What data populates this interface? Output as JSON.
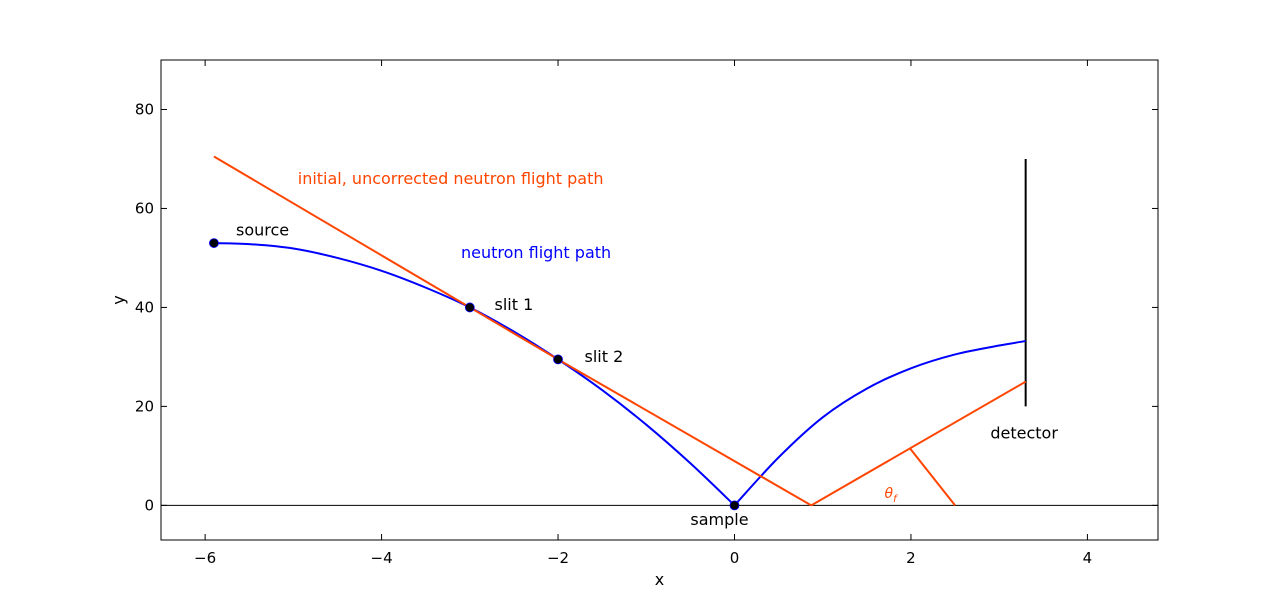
{
  "chart_data": {
    "type": "line",
    "xlabel": "x",
    "ylabel": "y",
    "xlim": [
      -6.5,
      4.8
    ],
    "ylim": [
      -7,
      90
    ],
    "xticks": [
      -6,
      -4,
      -2,
      0,
      2,
      4
    ],
    "yticks": [
      0,
      20,
      40,
      60,
      80
    ],
    "xtick_labels": [
      "−6",
      "−4",
      "−2",
      "0",
      "2",
      "4"
    ],
    "ytick_labels": [
      "0",
      "20",
      "40",
      "60",
      "80"
    ],
    "grid": false,
    "series": [
      {
        "color": "#0000ff",
        "x": [
          -5.9,
          -5.5,
          -5.0,
          -4.5,
          -4.0,
          -3.5,
          -3.0,
          -2.5,
          -2.0,
          -1.5,
          -1.0,
          -0.5,
          0.0
        ],
        "y": [
          53,
          52.8,
          51.9,
          50.0,
          47.4,
          44.0,
          40.0,
          35.1,
          29.5,
          23.3,
          16.3,
          8.5,
          0.0
        ]
      },
      {
        "color": "#0000ff",
        "x": [
          0.0,
          0.5,
          1.0,
          1.5,
          2.0,
          2.5,
          3.0,
          3.3
        ],
        "y": [
          0.0,
          9.7,
          17.8,
          23.6,
          27.7,
          30.5,
          32.3,
          33.2
        ]
      },
      {
        "color": "#ff4500",
        "x": [
          -5.9,
          -3.0,
          -2.0,
          0.87
        ],
        "y": [
          70.5,
          40.0,
          29.5,
          0.0
        ]
      },
      {
        "color": "#ff4500",
        "x": [
          0.87,
          3.3
        ],
        "y": [
          0.0,
          25.0
        ]
      },
      {
        "color": "#ff4500",
        "x": [
          1.99,
          2.5
        ],
        "y": [
          11.5,
          0.0
        ]
      }
    ],
    "baseline": {
      "y": 0,
      "color": "#000000"
    },
    "detector_bar": {
      "x": 3.3,
      "y": [
        20,
        70
      ],
      "color": "#000000"
    },
    "points": [
      {
        "name": "source",
        "x": -5.9,
        "y": 53
      },
      {
        "name": "slit 1",
        "x": -3.0,
        "y": 40
      },
      {
        "name": "slit 2",
        "x": -2.0,
        "y": 29.5
      },
      {
        "name": "sample",
        "x": 0.0,
        "y": 0
      }
    ],
    "annotations": [
      {
        "text": "source",
        "x": -5.65,
        "y": 55.5,
        "color": "#000000",
        "anchor": "start",
        "italic": false
      },
      {
        "text": "slit 1",
        "x": -2.72,
        "y": 40.5,
        "color": "#000000",
        "anchor": "start",
        "italic": false
      },
      {
        "text": "slit 2",
        "x": -1.7,
        "y": 30.0,
        "color": "#000000",
        "anchor": "start",
        "italic": false
      },
      {
        "text": "sample",
        "x": -0.5,
        "y": -3.0,
        "color": "#000000",
        "anchor": "start",
        "italic": false
      },
      {
        "text": "detector",
        "x": 2.9,
        "y": 14.5,
        "color": "#000000",
        "anchor": "start",
        "italic": false
      },
      {
        "text": "initial, uncorrected neutron flight path",
        "x": -4.95,
        "y": 66.0,
        "color": "#ff4500",
        "anchor": "start",
        "italic": false
      },
      {
        "text": "neutron flight path",
        "x": -3.1,
        "y": 51.0,
        "color": "#0000ff",
        "anchor": "start",
        "italic": false
      },
      {
        "text": "θ",
        "x": 1.7,
        "y": 2.5,
        "color": "#ff4500",
        "anchor": "start",
        "italic": true,
        "sub": "f"
      }
    ]
  }
}
